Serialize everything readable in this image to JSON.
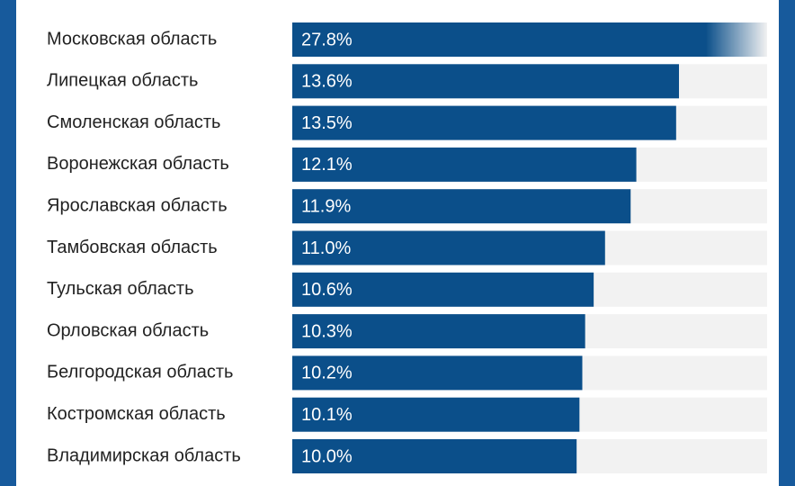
{
  "chart_data": {
    "type": "bar",
    "orientation": "horizontal",
    "categories": [
      "Московская область",
      "Липецкая область",
      "Смоленская область",
      "Воронежская область",
      "Ярославская область",
      "Тамбовская область",
      "Тульская область",
      "Орловская область",
      "Белгородская область",
      "Костромская область",
      "Владимирская область"
    ],
    "values": [
      27.8,
      13.6,
      13.5,
      12.1,
      11.9,
      11.0,
      10.6,
      10.3,
      10.2,
      10.1,
      10.0
    ],
    "value_labels": [
      "27.8%",
      "13.6%",
      "13.5%",
      "12.1%",
      "11.9%",
      "11.0%",
      "10.6%",
      "10.3%",
      "10.2%",
      "10.1%",
      "10.0%"
    ],
    "color": "#0b4f8a",
    "track_color": "#f2f2f2",
    "xlim": [
      0,
      16.7
    ]
  }
}
